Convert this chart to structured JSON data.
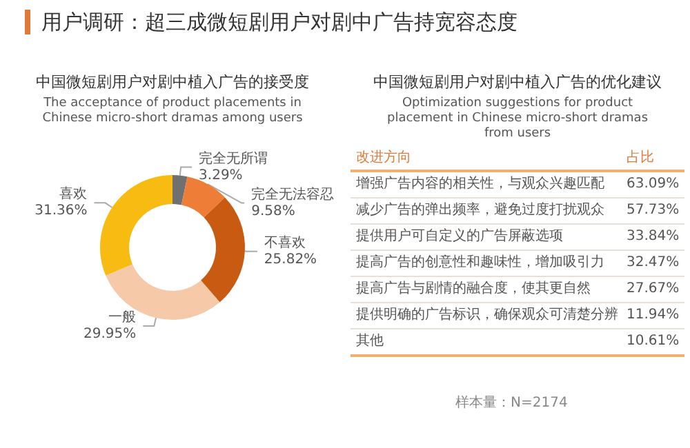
{
  "chart_data": [
    {
      "type": "donut",
      "title": "中国微短剧用户对剧中植入广告的接受度",
      "subtitle": "The acceptance of product placements in Chinese micro-short dramas among users",
      "annotations": [
        "用户调研：超三成微短剧用户对剧中广告持宽容态度"
      ],
      "categories": [
        "完全无所谓",
        "完全无法容忍",
        "不喜欢",
        "一般",
        "喜欢"
      ],
      "values": [
        3.29,
        9.58,
        25.82,
        29.95,
        31.36
      ],
      "colors": [
        "#707070",
        "#ee7d38",
        "#c95a12",
        "#f6c9a9",
        "#f7bb12"
      ],
      "value_labels": [
        "3.29%",
        "9.58%",
        "25.82%",
        "29.95%",
        "31.36%"
      ],
      "legend": false
    },
    {
      "type": "other",
      "title": "中国微短剧用户对剧中植入广告的优化建议",
      "subtitle": "Optimization suggestions for product placement in Chinese micro-short dramas from users",
      "xlabel": "改进方向",
      "ylabel": "占比",
      "categories": [
        "增强广告内容的相关性，与观众兴趣匹配",
        "减少广告的弹出频率，避免过度打扰观众",
        "提供用户可自定义的广告屏蔽选项",
        "提高广告的创意性和趣味性，增加吸引力",
        "提高广告与剧情的融合度，使其更自然",
        "提供明确的广告标识，确保观众可清楚分辨",
        "其他"
      ],
      "value_labels": [
        "63.09%",
        "57.73%",
        "33.84%",
        "32.47%",
        "27.67%",
        "11.94%",
        "10.61%"
      ],
      "annotations": [
        "样本量：N=2174"
      ]
    }
  ]
}
